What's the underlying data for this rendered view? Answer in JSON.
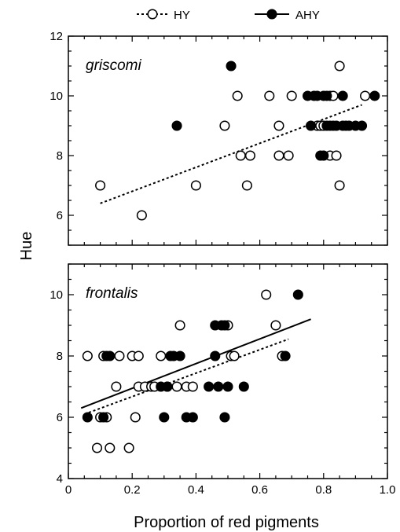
{
  "chart_data": [
    {
      "type": "scatter",
      "panel_label": "griscomi",
      "xlim": [
        0,
        1.0
      ],
      "ylim": [
        5,
        12
      ],
      "yticks": [
        {
          "v": 6,
          "label": "6"
        },
        {
          "v": 8,
          "label": "8"
        },
        {
          "v": 10,
          "label": "10"
        },
        {
          "v": 12,
          "label": "12"
        }
      ],
      "legend": {
        "placement": "top",
        "entries": [
          "HY",
          "AHY"
        ]
      },
      "series": [
        {
          "name": "HY",
          "marker": "open",
          "points": [
            [
              0.1,
              7
            ],
            [
              0.23,
              6
            ],
            [
              0.4,
              7
            ],
            [
              0.49,
              9
            ],
            [
              0.53,
              10
            ],
            [
              0.54,
              8
            ],
            [
              0.56,
              7
            ],
            [
              0.57,
              8
            ],
            [
              0.63,
              10
            ],
            [
              0.66,
              9
            ],
            [
              0.66,
              8
            ],
            [
              0.69,
              8
            ],
            [
              0.7,
              10
            ],
            [
              0.78,
              9
            ],
            [
              0.79,
              9
            ],
            [
              0.8,
              9
            ],
            [
              0.82,
              10
            ],
            [
              0.82,
              8
            ],
            [
              0.83,
              10
            ],
            [
              0.84,
              8
            ],
            [
              0.85,
              11
            ],
            [
              0.85,
              7
            ],
            [
              0.93,
              10
            ]
          ]
        },
        {
          "name": "AHY",
          "marker": "filled",
          "points": [
            [
              0.34,
              9
            ],
            [
              0.51,
              11
            ],
            [
              0.75,
              10
            ],
            [
              0.76,
              9
            ],
            [
              0.77,
              10
            ],
            [
              0.78,
              10
            ],
            [
              0.79,
              8
            ],
            [
              0.8,
              8
            ],
            [
              0.8,
              10
            ],
            [
              0.81,
              9
            ],
            [
              0.81,
              10
            ],
            [
              0.82,
              9
            ],
            [
              0.83,
              9
            ],
            [
              0.84,
              9
            ],
            [
              0.86,
              9
            ],
            [
              0.86,
              10
            ],
            [
              0.87,
              9
            ],
            [
              0.88,
              9
            ],
            [
              0.9,
              9
            ],
            [
              0.92,
              9
            ],
            [
              0.96,
              10
            ]
          ]
        }
      ],
      "fits": [
        {
          "series": "HY",
          "style": "dashed",
          "x": [
            0.1,
            0.92
          ],
          "y": [
            6.4,
            9.7
          ]
        }
      ]
    },
    {
      "type": "scatter",
      "panel_label": "frontalis",
      "xlim": [
        0,
        1.0
      ],
      "ylim": [
        4,
        11
      ],
      "yticks": [
        {
          "v": 4,
          "label": "4"
        },
        {
          "v": 6,
          "label": "6"
        },
        {
          "v": 8,
          "label": "8"
        },
        {
          "v": 10,
          "label": "10"
        }
      ],
      "xticks": [
        {
          "v": 0,
          "label": "0"
        },
        {
          "v": 0.2,
          "label": "0.2"
        },
        {
          "v": 0.4,
          "label": "0.4"
        },
        {
          "v": 0.6,
          "label": "0.6"
        },
        {
          "v": 0.8,
          "label": "0.8"
        },
        {
          "v": 1.0,
          "label": "1.0"
        }
      ],
      "series": [
        {
          "name": "HY",
          "marker": "open",
          "points": [
            [
              0.06,
              8
            ],
            [
              0.09,
              5
            ],
            [
              0.1,
              6
            ],
            [
              0.11,
              8
            ],
            [
              0.12,
              6
            ],
            [
              0.13,
              5
            ],
            [
              0.15,
              7
            ],
            [
              0.16,
              8
            ],
            [
              0.19,
              5
            ],
            [
              0.2,
              8
            ],
            [
              0.21,
              6
            ],
            [
              0.22,
              8
            ],
            [
              0.22,
              7
            ],
            [
              0.24,
              7
            ],
            [
              0.26,
              7
            ],
            [
              0.27,
              7
            ],
            [
              0.29,
              8
            ],
            [
              0.31,
              7
            ],
            [
              0.34,
              7
            ],
            [
              0.35,
              9
            ],
            [
              0.37,
              7
            ],
            [
              0.39,
              7
            ],
            [
              0.5,
              9
            ],
            [
              0.51,
              8
            ],
            [
              0.52,
              8
            ],
            [
              0.62,
              10
            ],
            [
              0.65,
              9
            ],
            [
              0.67,
              8
            ]
          ]
        },
        {
          "name": "AHY",
          "marker": "filled",
          "points": [
            [
              0.06,
              6
            ],
            [
              0.11,
              6
            ],
            [
              0.12,
              8
            ],
            [
              0.13,
              8
            ],
            [
              0.29,
              7
            ],
            [
              0.3,
              6
            ],
            [
              0.31,
              7
            ],
            [
              0.32,
              8
            ],
            [
              0.33,
              8
            ],
            [
              0.35,
              8
            ],
            [
              0.37,
              6
            ],
            [
              0.39,
              6
            ],
            [
              0.44,
              7
            ],
            [
              0.46,
              8
            ],
            [
              0.46,
              9
            ],
            [
              0.47,
              7
            ],
            [
              0.48,
              9
            ],
            [
              0.49,
              9
            ],
            [
              0.49,
              6
            ],
            [
              0.5,
              7
            ],
            [
              0.55,
              7
            ],
            [
              0.68,
              8
            ],
            [
              0.72,
              10
            ]
          ]
        }
      ],
      "fits": [
        {
          "series": "AHY",
          "style": "solid",
          "x": [
            0.04,
            0.76
          ],
          "y": [
            6.3,
            9.2
          ]
        },
        {
          "series": "HY",
          "style": "dashed",
          "x": [
            0.05,
            0.69
          ],
          "y": [
            6.1,
            8.55
          ]
        }
      ]
    }
  ],
  "ylabel": "Hue",
  "xlabel": "Proportion of red pigments"
}
